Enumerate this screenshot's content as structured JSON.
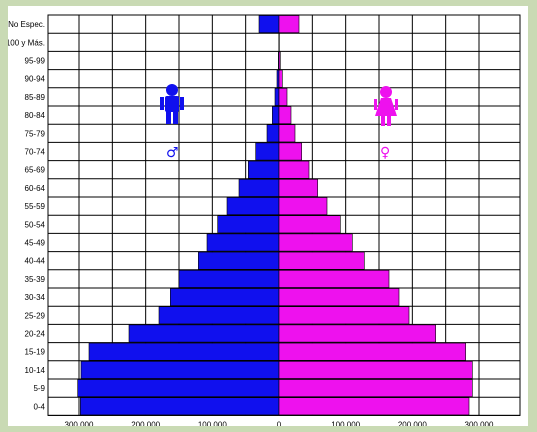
{
  "chart_data": {
    "type": "bar",
    "title": "",
    "orientation": "horizontal-pyramid",
    "categories": [
      "No Espec.",
      "100 y Más.",
      "95-99",
      "90-94",
      "85-89",
      "80-84",
      "75-79",
      "70-74",
      "65-69",
      "60-64",
      "55-59",
      "50-54",
      "45-49",
      "40-44",
      "35-39",
      "30-34",
      "25-29",
      "20-24",
      "15-19",
      "10-14",
      "5-9",
      "0-4"
    ],
    "series": [
      {
        "sex": "male",
        "color": "#1010ee",
        "values": [
          30000,
          300,
          1000,
          3000,
          6000,
          10000,
          18000,
          35000,
          46000,
          60000,
          78000,
          92000,
          108000,
          121000,
          150000,
          163000,
          180000,
          225000,
          285000,
          297000,
          302000,
          298000
        ]
      },
      {
        "sex": "female",
        "color": "#ee11ee",
        "values": [
          30000,
          500,
          2000,
          5000,
          12000,
          18000,
          24000,
          34000,
          45000,
          58000,
          72000,
          92000,
          110000,
          128000,
          165000,
          180000,
          195000,
          235000,
          280000,
          290000,
          290000,
          285000
        ]
      }
    ],
    "x_ticks": [
      "300,000",
      "200,000",
      "100,000",
      "0",
      "100,000",
      "200,000",
      "300,000"
    ],
    "x_range": [
      -300000,
      300000
    ],
    "grid": true,
    "icons": {
      "male": "male-figure-icon",
      "female": "female-figure-icon"
    },
    "symbols": {
      "male": "♂",
      "female": "♀"
    }
  }
}
